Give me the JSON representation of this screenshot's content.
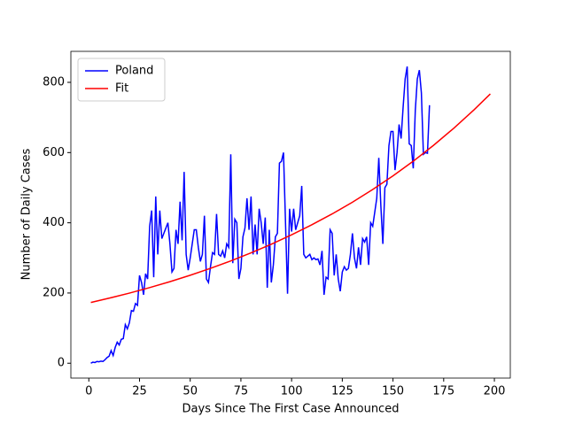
{
  "chart_data": {
    "type": "line",
    "xlabel": "Days Since The First Case Announced",
    "ylabel": "Number of Daily Cases",
    "xlim": [
      -8.85,
      207.85
    ],
    "ylim": [
      -42.3,
      888.3
    ],
    "xticks": [
      0,
      25,
      50,
      75,
      100,
      125,
      150,
      175,
      200
    ],
    "yticks": [
      0,
      200,
      400,
      600,
      800
    ],
    "grid": false,
    "legend": "upper left",
    "series": [
      {
        "name": "Poland",
        "color": "#0000ff",
        "x": [
          1,
          2,
          3,
          4,
          5,
          6,
          7,
          8,
          9,
          10,
          11,
          12,
          13,
          14,
          15,
          16,
          17,
          18,
          19,
          20,
          21,
          22,
          23,
          24,
          25,
          26,
          27,
          28,
          29,
          30,
          31,
          32,
          33,
          34,
          35,
          36,
          37,
          38,
          39,
          40,
          41,
          42,
          43,
          44,
          45,
          46,
          47,
          48,
          49,
          50,
          51,
          52,
          53,
          54,
          55,
          56,
          57,
          58,
          59,
          60,
          61,
          62,
          63,
          64,
          65,
          66,
          67,
          68,
          69,
          70,
          71,
          72,
          73,
          74,
          75,
          76,
          77,
          78,
          79,
          80,
          81,
          82,
          83,
          84,
          85,
          86,
          87,
          88,
          89,
          90,
          91,
          92,
          93,
          94,
          95,
          96,
          97,
          98,
          99,
          100,
          101,
          102,
          103,
          104,
          105,
          106,
          107,
          108,
          109,
          110,
          111,
          112,
          113,
          114,
          115,
          116,
          117,
          118,
          119,
          120,
          121,
          122,
          123,
          124,
          125,
          126,
          127,
          128,
          129,
          130,
          131,
          132,
          133,
          134,
          135,
          136,
          137,
          138,
          139,
          140,
          141,
          142,
          143,
          144,
          145,
          146,
          147,
          148,
          149,
          150,
          151,
          152,
          153,
          154,
          155,
          156,
          157,
          158,
          159,
          160,
          161,
          162,
          163,
          164,
          165,
          166,
          167,
          168
        ],
        "values": [
          0,
          3,
          2,
          5,
          4,
          6,
          5,
          10,
          16,
          20,
          36,
          22,
          45,
          60,
          52,
          68,
          70,
          110,
          98,
          115,
          150,
          148,
          170,
          165,
          250,
          230,
          195,
          255,
          240,
          390,
          435,
          245,
          475,
          310,
          435,
          355,
          370,
          385,
          400,
          340,
          260,
          270,
          380,
          340,
          460,
          350,
          545,
          310,
          265,
          300,
          340,
          380,
          380,
          330,
          290,
          310,
          420,
          240,
          230,
          275,
          315,
          310,
          425,
          310,
          305,
          320,
          300,
          340,
          330,
          595,
          285,
          410,
          400,
          240,
          270,
          360,
          385,
          470,
          380,
          475,
          310,
          395,
          310,
          440,
          400,
          340,
          415,
          215,
          380,
          230,
          280,
          360,
          370,
          570,
          575,
          600,
          400,
          198,
          440,
          375,
          440,
          380,
          400,
          420,
          505,
          310,
          300,
          305,
          310,
          295,
          300,
          295,
          297,
          280,
          320,
          195,
          245,
          240,
          380,
          370,
          250,
          310,
          240,
          205,
          260,
          275,
          265,
          270,
          310,
          370,
          300,
          270,
          330,
          280,
          355,
          345,
          360,
          280,
          400,
          390,
          430,
          470,
          585,
          450,
          340,
          500,
          510,
          620,
          660,
          660,
          550,
          600,
          680,
          640,
          730,
          810,
          845,
          625,
          620,
          555,
          720,
          810,
          835,
          770,
          595,
          600,
          598,
          735
        ]
      },
      {
        "name": "Fit",
        "color": "#ff0000",
        "x": [
          1,
          10,
          20,
          30,
          40,
          50,
          60,
          70,
          80,
          90,
          100,
          110,
          120,
          130,
          140,
          150,
          160,
          170,
          180,
          190,
          198
        ],
        "values": [
          173,
          185.2,
          199.7,
          215.4,
          232.3,
          250.6,
          270.2,
          291.5,
          314.4,
          339.0,
          365.7,
          394.4,
          425.3,
          458.7,
          494.8,
          533.6,
          575.5,
          620.7,
          669.4,
          722.0,
          767
        ]
      }
    ]
  }
}
